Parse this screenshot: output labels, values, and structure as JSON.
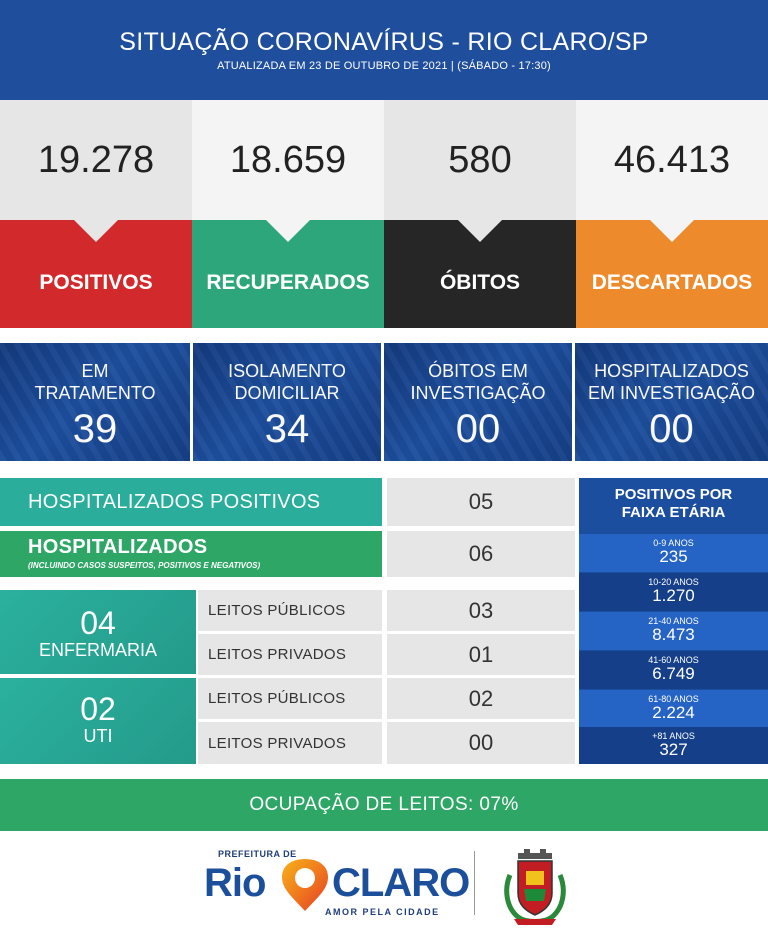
{
  "header": {
    "title": "SITUAÇÃO CORONAVÍRUS - RIO CLARO/SP",
    "subtitle": "ATUALIZADA EM 23 DE OUTUBRO DE 2021 | (SÁBADO - 17:30)"
  },
  "stats": [
    {
      "value": "19.278",
      "label": "POSITIVOS",
      "color": "#d22a2c",
      "bg": "#e6e6e6"
    },
    {
      "value": "18.659",
      "label": "RECUPERADOS",
      "color": "#2ea67c",
      "bg": "#f4f4f4"
    },
    {
      "value": "580",
      "label": "ÓBITOS",
      "color": "#262626",
      "bg": "#e6e6e6"
    },
    {
      "value": "46.413",
      "label": "DESCARTADOS",
      "color": "#ec8a2c",
      "bg": "#f4f4f4"
    }
  ],
  "blue_cards": [
    {
      "label_1": "EM",
      "label_2": "TRATAMENTO",
      "value": "39"
    },
    {
      "label_1": "ISOLAMENTO",
      "label_2": "DOMICILIAR",
      "value": "34"
    },
    {
      "label_1": "ÓBITOS EM",
      "label_2": "INVESTIGAÇÃO",
      "value": "00"
    },
    {
      "label_1": "HOSPITALIZADOS",
      "label_2": "EM INVESTIGAÇÃO",
      "value": "00"
    }
  ],
  "hospitalized": {
    "positivos_label": "HOSPITALIZADOS POSITIVOS",
    "positivos_value": "05",
    "total_label": "HOSPITALIZADOS",
    "total_note": "(INCLUINDO CASOS SUSPEITOS, POSITIVOS E NEGATIVOS)",
    "total_value": "06"
  },
  "enfermaria": {
    "count": "04",
    "label": "ENFERMARIA",
    "publicos_label": "LEITOS PÚBLICOS",
    "publicos_value": "03",
    "privados_label": "LEITOS PRIVADOS",
    "privados_value": "01"
  },
  "uti": {
    "count": "02",
    "label": "UTI",
    "publicos_label": "LEITOS PÚBLICOS",
    "publicos_value": "02",
    "privados_label": "LEITOS PRIVADOS",
    "privados_value": "00"
  },
  "age_groups": {
    "title_1": "POSITIVOS POR",
    "title_2": "FAIXA ETÁRIA",
    "rows": [
      {
        "range": "0-9 ANOS",
        "count": "235"
      },
      {
        "range": "10-20 ANOS",
        "count": "1.270"
      },
      {
        "range": "21-40 ANOS",
        "count": "8.473"
      },
      {
        "range": "41-60 ANOS",
        "count": "6.749"
      },
      {
        "range": "61-80 ANOS",
        "count": "2.224"
      },
      {
        "range": "+81 ANOS",
        "count": "327"
      }
    ]
  },
  "occupancy": {
    "text": "OCUPAÇÃO DE LEITOS: 07%"
  },
  "footer": {
    "logo_top": "PREFEITURA DE",
    "logo_rio": "Rio",
    "logo_claro": "CLARO",
    "logo_tagline": "AMOR PELA CIDADE"
  },
  "colors": {
    "header_blue": "#1f4e9c",
    "green_dark": "#2ea666",
    "teal": "#2aae9b",
    "age_row_light": "#2563c4",
    "age_row_dark": "#153f88"
  }
}
